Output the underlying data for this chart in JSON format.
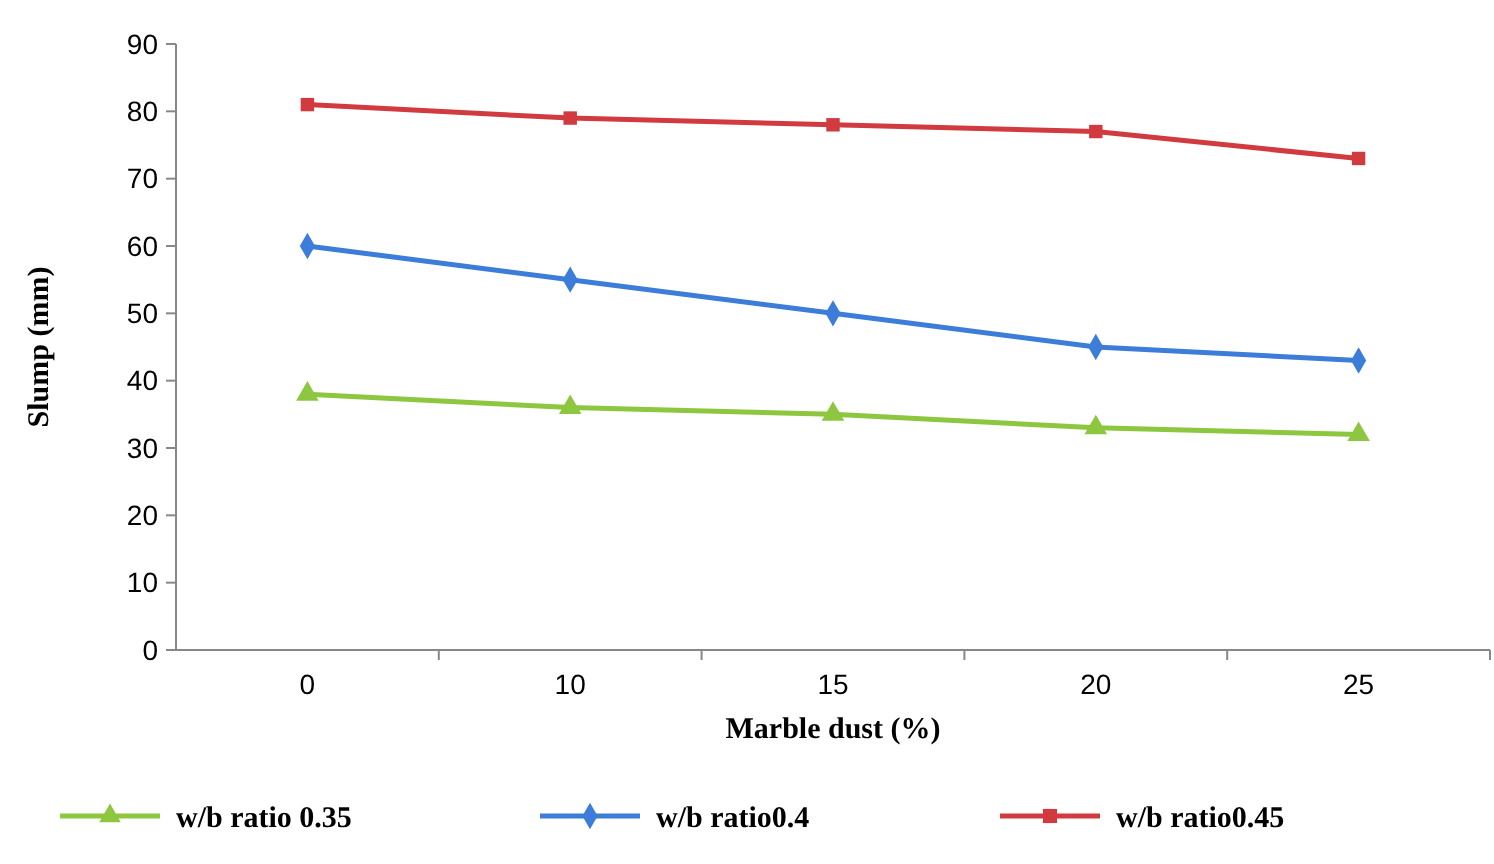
{
  "chart_data": {
    "type": "line",
    "xlabel": "Marble dust (%)",
    "ylabel": "Slump (mm)",
    "categories": [
      "0",
      "10",
      "15",
      "20",
      "25"
    ],
    "ylim": [
      0,
      90
    ],
    "yticks": [
      0,
      10,
      20,
      30,
      40,
      50,
      60,
      70,
      80,
      90
    ],
    "grid": false,
    "legend": "bottom",
    "line_style": "solid",
    "series": [
      {
        "name": "w/b ratio 0.35",
        "color": "#8dc63f",
        "marker": "triangle",
        "values": [
          38,
          36,
          35,
          33,
          32
        ]
      },
      {
        "name": "w/b ratio0.4",
        "color": "#3b7dd8",
        "marker": "diamond",
        "values": [
          60,
          55,
          50,
          45,
          43
        ]
      },
      {
        "name": "w/b ratio0.45",
        "color": "#d13a3e",
        "marker": "square",
        "values": [
          81,
          79,
          78,
          77,
          73
        ]
      }
    ]
  }
}
